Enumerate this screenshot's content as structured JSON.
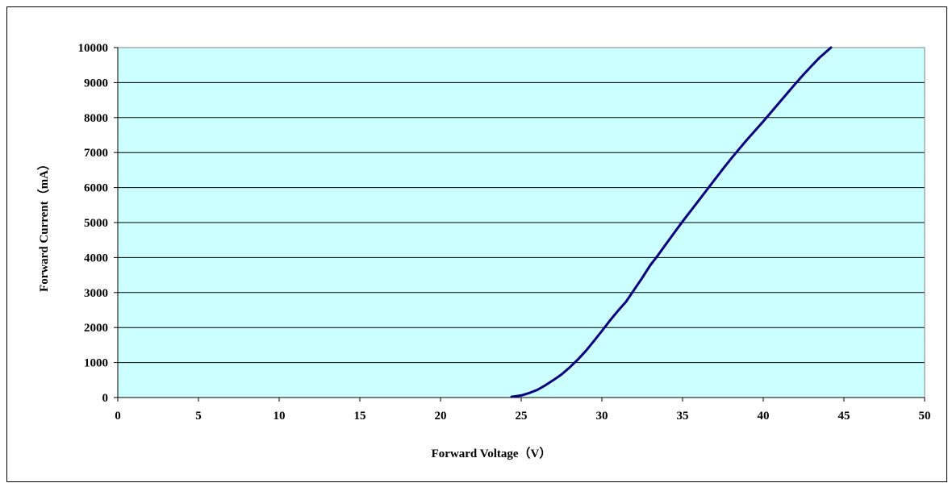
{
  "chart_data": {
    "type": "line",
    "title": "",
    "xlabel": "Forward Voltage（V）",
    "ylabel": "Forward Current（mA）",
    "xlim": [
      0,
      50
    ],
    "ylim": [
      0,
      10000
    ],
    "xticks": [
      0,
      5,
      10,
      15,
      20,
      25,
      30,
      35,
      40,
      45,
      50
    ],
    "yticks": [
      0,
      1000,
      2000,
      3000,
      4000,
      5000,
      6000,
      7000,
      8000,
      9000,
      10000
    ],
    "grid": "horizontal",
    "legend": "none",
    "series": [
      {
        "x": [
          24.4,
          25.0,
          25.5,
          26.0,
          26.5,
          27.0,
          27.5,
          28.0,
          28.5,
          29.0,
          29.5,
          30.0,
          30.5,
          31.0,
          31.5,
          32.0,
          32.5,
          33.0,
          33.5,
          34.0,
          34.5,
          35.0,
          35.5,
          36.0,
          36.5,
          37.0,
          37.5,
          38.0,
          38.5,
          39.0,
          39.5,
          40.0,
          40.5,
          41.0,
          41.5,
          42.0,
          42.5,
          43.0,
          43.5,
          44.2
        ],
        "y": [
          20,
          60,
          130,
          220,
          350,
          500,
          660,
          860,
          1080,
          1330,
          1610,
          1900,
          2200,
          2480,
          2740,
          3080,
          3420,
          3780,
          4080,
          4400,
          4720,
          5030,
          5330,
          5630,
          5930,
          6230,
          6530,
          6820,
          7100,
          7370,
          7630,
          7890,
          8160,
          8430,
          8700,
          8970,
          9230,
          9480,
          9720,
          10000
        ]
      }
    ]
  },
  "colors": {
    "plot_background": "#ccffff",
    "line": "#000080",
    "grid": "#000000"
  }
}
